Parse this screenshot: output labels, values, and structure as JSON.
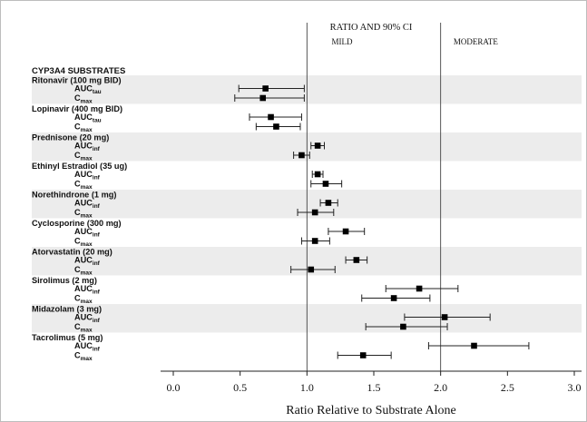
{
  "chart_data": {
    "type": "forest",
    "title": "RATIO AND 90% CI",
    "region_labels": [
      "MILD",
      "MODERATE"
    ],
    "reference_lines": [
      1.0,
      2.0
    ],
    "xlabel": "Ratio Relative to Substrate Alone",
    "xlim": [
      0.0,
      3.0
    ],
    "x_ticks": [
      "0.0",
      "0.5",
      "1.0",
      "1.5",
      "2.0",
      "2.5",
      "3.0"
    ],
    "group_header": "CYP3A4 SUBSTRATES",
    "drugs": [
      {
        "name": "Ritonavir (100 mg BID)",
        "rows": [
          {
            "param": "AUC",
            "sub": "tau",
            "est": 0.69,
            "lo": 0.49,
            "hi": 0.98
          },
          {
            "param": "C",
            "sub": "max",
            "est": 0.67,
            "lo": 0.46,
            "hi": 0.98
          }
        ]
      },
      {
        "name": "Lopinavir (400 mg BID)",
        "rows": [
          {
            "param": "AUC",
            "sub": "tau",
            "est": 0.73,
            "lo": 0.57,
            "hi": 0.96
          },
          {
            "param": "C",
            "sub": "max",
            "est": 0.77,
            "lo": 0.62,
            "hi": 0.95
          }
        ]
      },
      {
        "name": "Prednisone (20 mg)",
        "rows": [
          {
            "param": "AUC",
            "sub": "inf",
            "est": 1.08,
            "lo": 1.03,
            "hi": 1.13
          },
          {
            "param": "C",
            "sub": "max",
            "est": 0.96,
            "lo": 0.9,
            "hi": 1.02
          }
        ]
      },
      {
        "name": "Ethinyl Estradiol (35 ug)",
        "rows": [
          {
            "param": "AUC",
            "sub": "inf",
            "est": 1.08,
            "lo": 1.04,
            "hi": 1.12
          },
          {
            "param": "C",
            "sub": "max",
            "est": 1.14,
            "lo": 1.03,
            "hi": 1.26
          }
        ]
      },
      {
        "name": "Norethindrone (1 mg)",
        "rows": [
          {
            "param": "AUC",
            "sub": "inf",
            "est": 1.16,
            "lo": 1.1,
            "hi": 1.23
          },
          {
            "param": "C",
            "sub": "max",
            "est": 1.06,
            "lo": 0.93,
            "hi": 1.2
          }
        ]
      },
      {
        "name": "Cyclosporine (300 mg)",
        "rows": [
          {
            "param": "AUC",
            "sub": "inf",
            "est": 1.29,
            "lo": 1.16,
            "hi": 1.43
          },
          {
            "param": "C",
            "sub": "max",
            "est": 1.06,
            "lo": 0.96,
            "hi": 1.17
          }
        ]
      },
      {
        "name": "Atorvastatin (20 mg)",
        "rows": [
          {
            "param": "AUC",
            "sub": "inf",
            "est": 1.37,
            "lo": 1.29,
            "hi": 1.45
          },
          {
            "param": "C",
            "sub": "max",
            "est": 1.03,
            "lo": 0.88,
            "hi": 1.21
          }
        ]
      },
      {
        "name": "Sirolimus (2 mg)",
        "rows": [
          {
            "param": "AUC",
            "sub": "inf",
            "est": 1.84,
            "lo": 1.59,
            "hi": 2.13
          },
          {
            "param": "C",
            "sub": "max",
            "est": 1.65,
            "lo": 1.41,
            "hi": 1.92
          }
        ]
      },
      {
        "name": "Midazolam (3 mg)",
        "rows": [
          {
            "param": "AUC",
            "sub": "inf",
            "est": 2.03,
            "lo": 1.73,
            "hi": 2.37
          },
          {
            "param": "C",
            "sub": "max",
            "est": 1.72,
            "lo": 1.44,
            "hi": 2.05
          }
        ]
      },
      {
        "name": "Tacrolimus (5 mg)",
        "rows": [
          {
            "param": "AUC",
            "sub": "inf",
            "est": 2.25,
            "lo": 1.91,
            "hi": 2.66
          },
          {
            "param": "C",
            "sub": "max",
            "est": 1.42,
            "lo": 1.23,
            "hi": 1.63
          }
        ]
      }
    ]
  }
}
